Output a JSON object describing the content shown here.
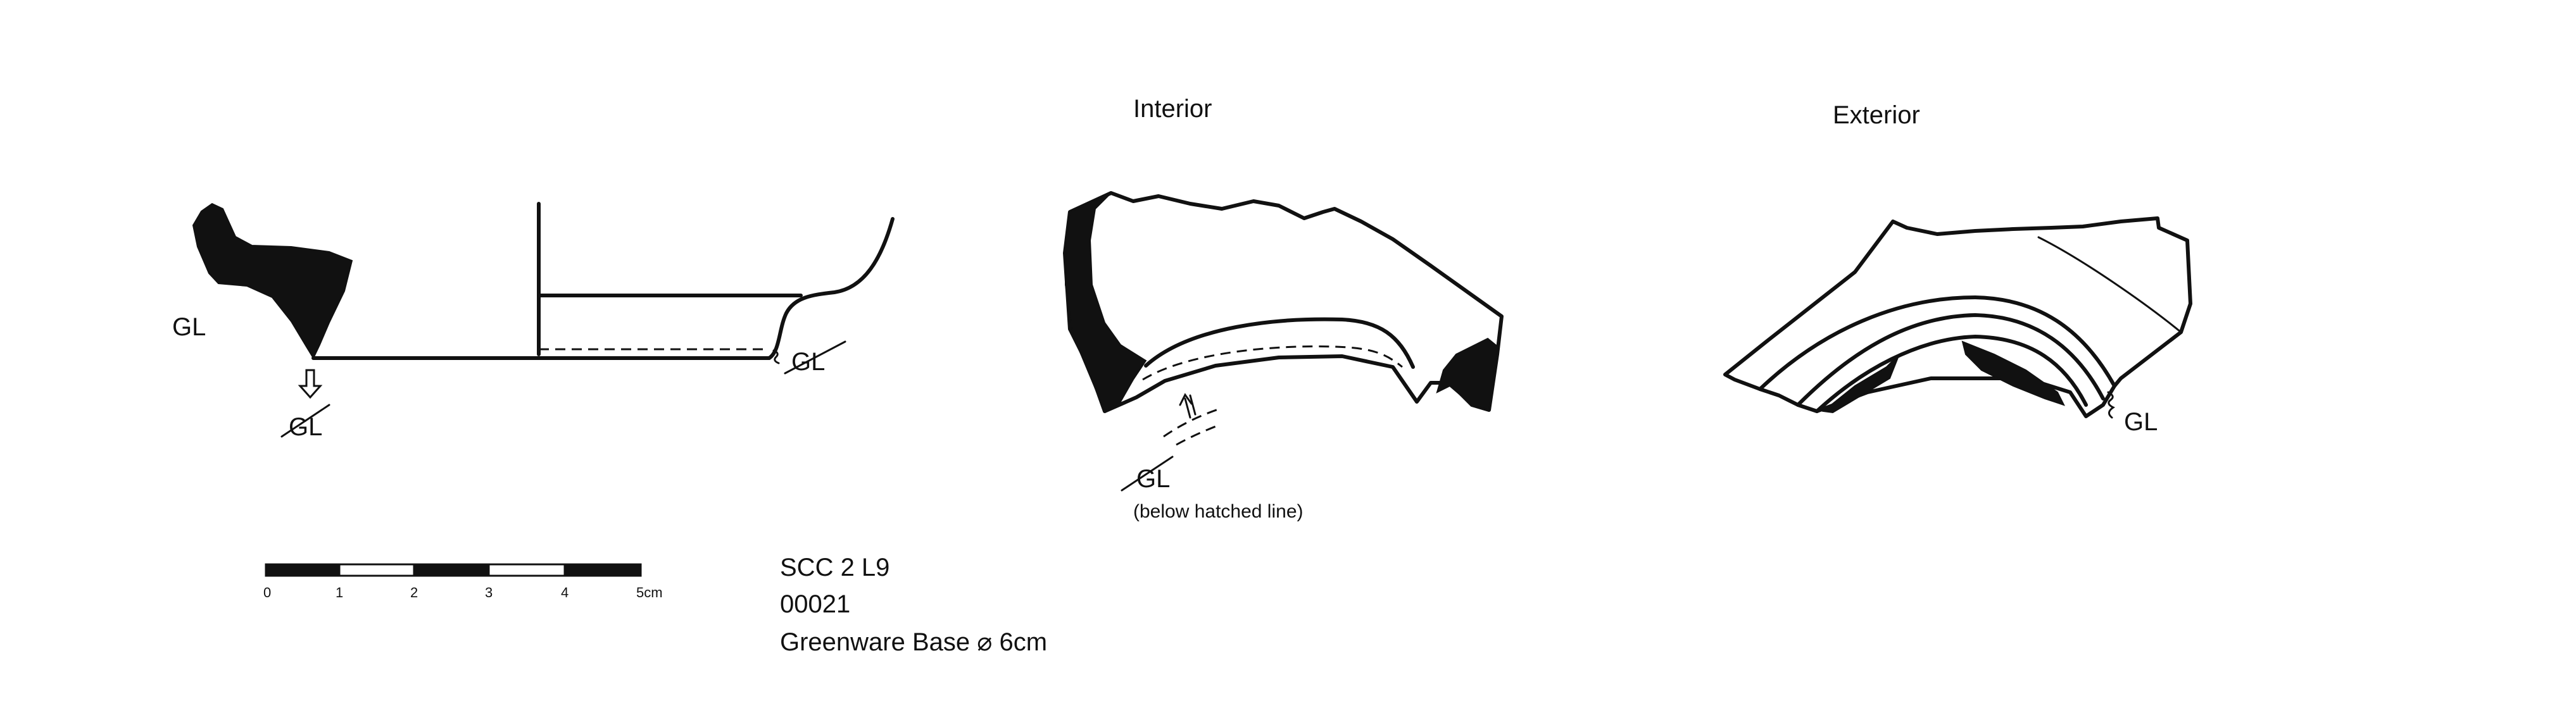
{
  "profile": {
    "gl_left_label": "GL",
    "gl_bottom_label": "GL",
    "gl_right_label": "GL"
  },
  "interior": {
    "title": "Interior",
    "gl_label": "GL",
    "note": "(below hatched line)"
  },
  "exterior": {
    "title": "Exterior",
    "gl_label": "GL"
  },
  "scale_bar": {
    "ticks": [
      "0",
      "1",
      "2",
      "3",
      "4",
      "5cm"
    ]
  },
  "caption": {
    "site": "SCC 2 L9",
    "number": "00021",
    "description": "Greenware Base ⌀ 6cm"
  },
  "colors": {
    "ink": "#111111",
    "paper": "#ffffff"
  }
}
